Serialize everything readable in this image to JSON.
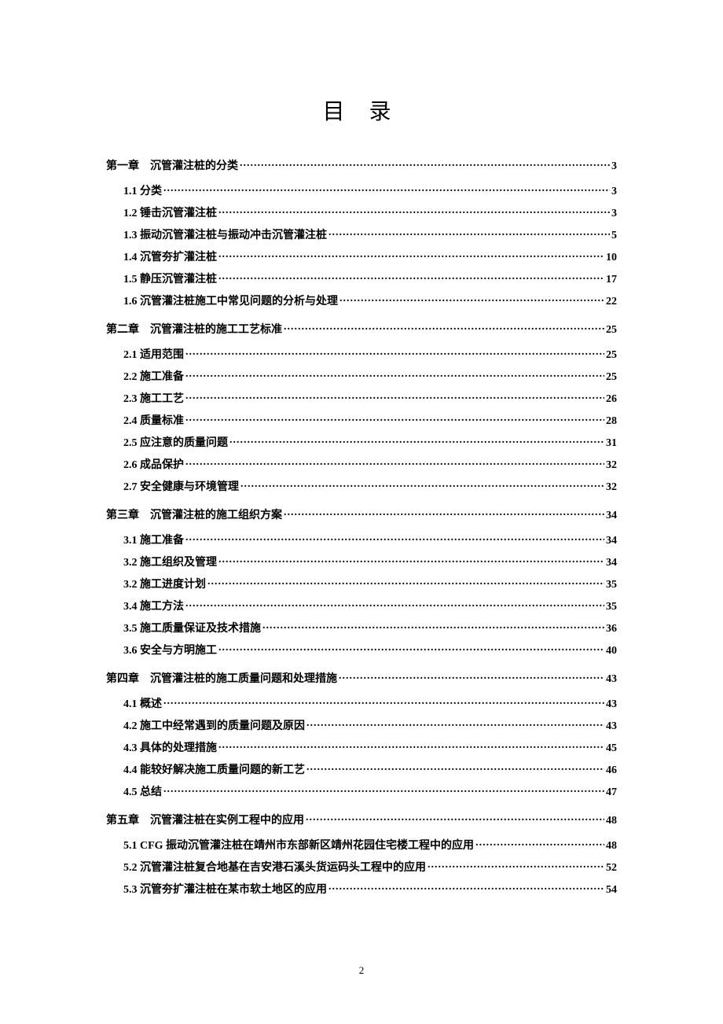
{
  "title": "目 录",
  "pageNumber": "2",
  "chapters": [
    {
      "prefix": "第一章",
      "title": "沉管灌注桩的分类",
      "page": "3",
      "subs": [
        {
          "num": "1.1",
          "title": "分类",
          "page": "3"
        },
        {
          "num": "1.2",
          "title": "锤击沉管灌注桩",
          "page": "3"
        },
        {
          "num": "1.3",
          "title": "振动沉管灌注桩与振动冲击沉管灌注桩",
          "page": "5"
        },
        {
          "num": "1.4",
          "title": "沉管夯扩灌注桩",
          "page": "10"
        },
        {
          "num": "1.5",
          "title": "静压沉管灌注桩",
          "page": "17"
        },
        {
          "num": "1.6",
          "title": "沉管灌注桩施工中常见问题的分析与处理",
          "page": "22"
        }
      ]
    },
    {
      "prefix": "第二章",
      "title": "沉管灌注桩的施工工艺标准",
      "page": "25",
      "subs": [
        {
          "num": "2.1",
          "title": "适用范围",
          "page": "25"
        },
        {
          "num": "2.2",
          "title": "施工准备",
          "page": "25"
        },
        {
          "num": "2.3",
          "title": "施工工艺",
          "page": "26"
        },
        {
          "num": "2.4",
          "title": "质量标准",
          "page": "28"
        },
        {
          "num": "2.5",
          "title": "应注意的质量问题",
          "page": "31"
        },
        {
          "num": "2.6",
          "title": "成品保护",
          "page": "32"
        },
        {
          "num": "2.7",
          "title": "安全健康与环境管理",
          "page": "32"
        }
      ]
    },
    {
      "prefix": "第三章",
      "title": "沉管灌注桩的施工组织方案",
      "page": "34",
      "subs": [
        {
          "num": "3.1",
          "title": "施工准备",
          "page": "34"
        },
        {
          "num": "3.2",
          "title": "施工组织及管理",
          "page": "34"
        },
        {
          "num": "3.2",
          "title": "施工进度计划",
          "page": "35"
        },
        {
          "num": "3.4",
          "title": "施工方法",
          "page": "35"
        },
        {
          "num": "3.5",
          "title": "施工质量保证及技术措施",
          "page": "36"
        },
        {
          "num": "3.6",
          "title": "安全与方明施工",
          "page": "40"
        }
      ]
    },
    {
      "prefix": "第四章",
      "title": "沉管灌注桩的施工质量问题和处理措施",
      "page": "43",
      "subs": [
        {
          "num": "4.1",
          "title": "概述",
          "page": "43"
        },
        {
          "num": "4.2",
          "title": "施工中经常遇到的质量问题及原因",
          "page": "43"
        },
        {
          "num": "4.3",
          "title": "具体的处理措施",
          "page": "45"
        },
        {
          "num": "4.4",
          "title": "能较好解决施工质量问题的新工艺",
          "page": "46"
        },
        {
          "num": "4.5",
          "title": "总结",
          "page": "47"
        }
      ]
    },
    {
      "prefix": "第五章",
      "title": "沉管灌注桩在实例工程中的应用",
      "page": "48",
      "subs": [
        {
          "num": "5.1",
          "title": "CFG 振动沉管灌注桩在靖州市东部新区靖州花园住宅楼工程中的应用",
          "page": "48"
        },
        {
          "num": "5.2",
          "title": "沉管灌注桩复合地基在吉安港石溪头货运码头工程中的应用",
          "page": "52"
        },
        {
          "num": "5.3",
          "title": "沉管夯扩灌注桩在某市软土地区的应用",
          "page": "54"
        }
      ]
    }
  ]
}
